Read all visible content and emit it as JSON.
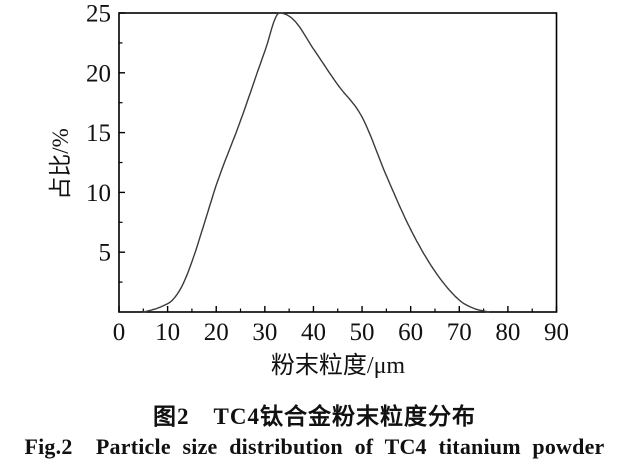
{
  "figure": {
    "caption_zh": "图2　TC4钛合金粉末粒度分布",
    "caption_en": "Fig.2  Particle size distribution of TC4 titanium powder"
  },
  "chart_data": {
    "type": "line",
    "title": "",
    "xlabel": "粉末粒度/μm",
    "ylabel": "占比/%",
    "xlim": [
      0,
      90
    ],
    "ylim": [
      0,
      25
    ],
    "x_major_ticks": [
      0,
      10,
      20,
      30,
      40,
      50,
      60,
      70,
      80,
      90
    ],
    "x_minor_tick_step": 5,
    "y_major_ticks": [
      5,
      10,
      15,
      20,
      25
    ],
    "y_minor_tick_step": 2.5,
    "grid": false,
    "legend": false,
    "axis_color": "#000000",
    "tick_label_color": "#111111",
    "line_color": "#3a3a3a",
    "series": [
      {
        "name": "TC4 powder particle size distribution",
        "x": [
          5,
          7,
          9,
          11,
          13,
          15,
          18,
          20,
          25,
          30,
          33,
          36,
          40,
          45,
          50,
          55,
          60,
          65,
          70,
          73,
          76
        ],
        "y": [
          0,
          0.2,
          0.5,
          1.0,
          2.2,
          4.2,
          8.0,
          10.6,
          16.0,
          21.8,
          25.0,
          24.4,
          22.0,
          19.0,
          16.3,
          11.4,
          6.9,
          3.4,
          1.0,
          0.3,
          0
        ]
      }
    ]
  }
}
